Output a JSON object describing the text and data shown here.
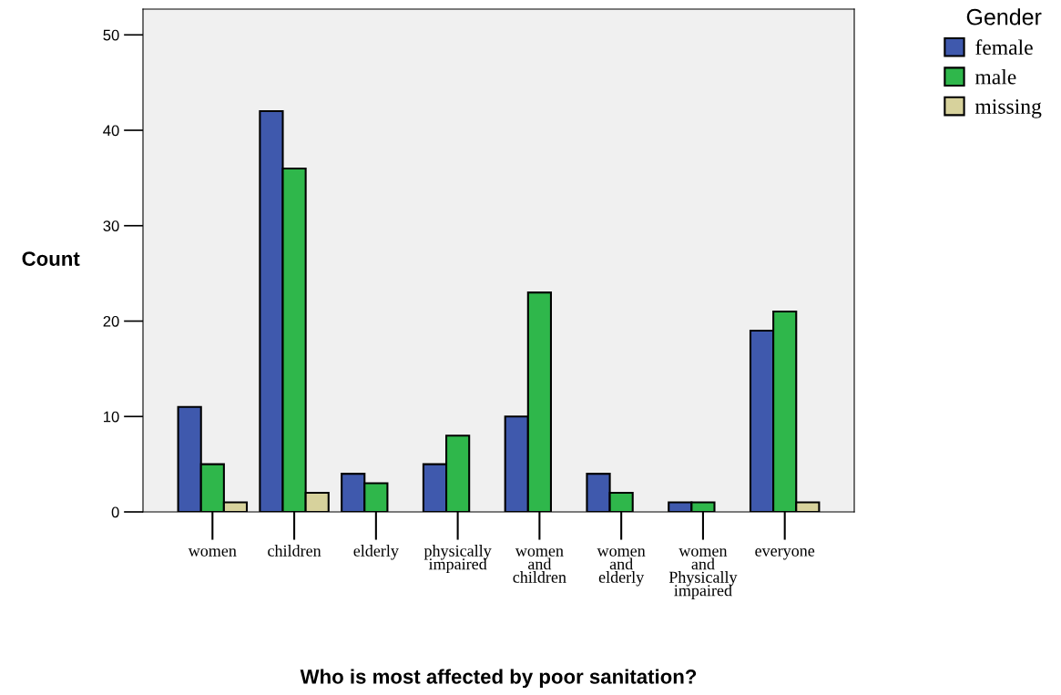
{
  "chart_data": {
    "type": "bar",
    "xlabel": "Who is most affected by poor sanitation?",
    "ylabel": "Count",
    "legend_title": "Gender",
    "categories": [
      "women",
      "children",
      "elderly",
      "physically\nimpaired",
      "women\nand\nchildren",
      "women\nand\nelderly",
      "women\nand\nPhysically\nimpaired",
      "everyone"
    ],
    "series": [
      {
        "name": "female",
        "color": "#3f59ad",
        "values": [
          11,
          42,
          4,
          5,
          10,
          4,
          1,
          19
        ]
      },
      {
        "name": "male",
        "color": "#2fb74b",
        "values": [
          5,
          36,
          3,
          8,
          23,
          2,
          1,
          21
        ]
      },
      {
        "name": "missing",
        "color": "#d7d29c",
        "values": [
          1,
          2,
          null,
          null,
          null,
          null,
          null,
          1
        ]
      }
    ],
    "ylim": [
      0,
      52.7
    ],
    "yticks": [
      0,
      10,
      20,
      30,
      40,
      50
    ],
    "grid": false,
    "legend": "top right"
  }
}
